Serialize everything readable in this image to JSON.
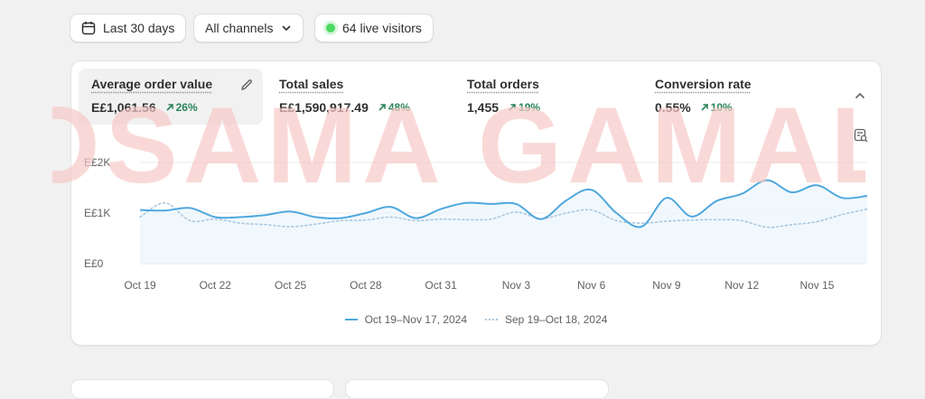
{
  "filters": {
    "date_range": "Last 30 days",
    "channels": "All channels",
    "live_visitors": "64 live visitors"
  },
  "metrics": [
    {
      "label": "Average order value",
      "value": "E£1,061.56",
      "change": "26%"
    },
    {
      "label": "Total sales",
      "value": "E£1,590,917.49",
      "change": "48%"
    },
    {
      "label": "Total orders",
      "value": "1,455",
      "change": "19%"
    },
    {
      "label": "Conversion rate",
      "value": "0.55%",
      "change": "10%"
    }
  ],
  "watermark": "OSAMA GAMAL",
  "colors": {
    "current_series": "#4fa8dd",
    "previous_series": "#a9c7df",
    "positive_change": "#29845a",
    "watermark": "#f6c9c6"
  },
  "chart_data": {
    "type": "line",
    "title": "",
    "xlabel": "",
    "ylabel": "",
    "ylim": [
      0,
      2000
    ],
    "yticks": [
      {
        "value": 0,
        "label": "E£0"
      },
      {
        "value": 1000,
        "label": "E£1K"
      },
      {
        "value": 2000,
        "label": "E£2K"
      }
    ],
    "x_tick_labels": [
      "Oct 19",
      "Oct 22",
      "Oct 25",
      "Oct 28",
      "Oct 31",
      "Nov 3",
      "Nov 6",
      "Nov 9",
      "Nov 12",
      "Nov 15"
    ],
    "x_tick_day_index": [
      0,
      3,
      6,
      9,
      12,
      15,
      18,
      21,
      24,
      27
    ],
    "grid": true,
    "legend_position": "bottom",
    "series": [
      {
        "name": "Oct 19–Nov 17, 2024",
        "style": "solid",
        "values": [
          1060,
          1050,
          1100,
          920,
          920,
          960,
          1030,
          920,
          900,
          1000,
          1120,
          900,
          1080,
          1200,
          1180,
          1180,
          880,
          1250,
          1460,
          1000,
          730,
          1300,
          930,
          1240,
          1380,
          1650,
          1410,
          1550,
          1300,
          1340
        ]
      },
      {
        "name": "Sep 19–Oct 18, 2024",
        "style": "dotted",
        "values": [
          920,
          1200,
          850,
          880,
          800,
          770,
          730,
          780,
          850,
          860,
          920,
          850,
          880,
          870,
          880,
          1020,
          890,
          1000,
          1060,
          850,
          800,
          840,
          860,
          870,
          850,
          720,
          770,
          830,
          970,
          1080
        ]
      }
    ]
  }
}
